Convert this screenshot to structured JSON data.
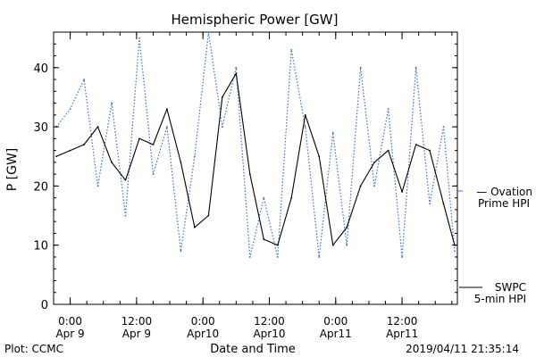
{
  "chart_data": {
    "type": "line",
    "title": "Hemispheric Power [GW]",
    "xlabel": "Date and Time",
    "ylabel": "P [GW]",
    "ylim": [
      0,
      46
    ],
    "yticks": [
      0,
      10,
      20,
      30,
      40
    ],
    "grid": false,
    "x_unit": "hours from 2019-04-09 00:00",
    "xlim": [
      -3,
      70
    ],
    "xticks": [
      {
        "x": 0,
        "label1": "0:00",
        "label2": "Apr 9"
      },
      {
        "x": 12,
        "label1": "12:00",
        "label2": "Apr 9"
      },
      {
        "x": 24,
        "label1": "0:00",
        "label2": "Apr10"
      },
      {
        "x": 36,
        "label1": "12:00",
        "label2": "Apr10"
      },
      {
        "x": 48,
        "label1": "0:00",
        "label2": "Apr11"
      },
      {
        "x": 60,
        "label1": "12:00",
        "label2": "Apr11"
      }
    ],
    "x": [
      -2.5,
      0,
      2.5,
      5,
      7.5,
      10,
      12.5,
      15,
      17.5,
      20,
      22.5,
      25,
      27.5,
      30,
      32.5,
      35,
      37.5,
      40,
      42.5,
      45,
      47.5,
      50,
      52.5,
      55,
      57.5,
      60,
      62.5,
      65,
      67.5,
      69.5
    ],
    "series": [
      {
        "name": "SWPC 5-min HPI",
        "color": "#000000",
        "dash": "solid",
        "legend_lines": [
          "SWPC",
          "5-min HPI"
        ],
        "values": [
          25,
          26,
          27,
          30,
          24,
          21,
          28,
          27,
          33,
          24,
          13,
          15,
          35,
          39,
          22,
          11,
          10,
          18,
          32,
          25,
          10,
          13,
          20,
          24,
          26,
          19,
          27,
          26,
          17,
          10
        ]
      },
      {
        "name": "Ovation Prime HPI",
        "color": "#3a6fd8",
        "dash": "dotted",
        "legend_lines": [
          "— Ovation",
          "Prime HPI"
        ],
        "values": [
          30,
          33,
          38,
          20,
          34,
          15,
          45,
          22,
          30,
          9,
          25,
          46,
          30,
          40,
          8,
          18,
          8,
          43,
          30,
          8,
          29,
          10,
          40,
          20,
          33,
          8,
          40,
          17,
          30,
          9
        ]
      }
    ]
  },
  "footer": {
    "plot_credit": "Plot: CCMC",
    "timestamp": "2019/04/11 21:35:14"
  }
}
